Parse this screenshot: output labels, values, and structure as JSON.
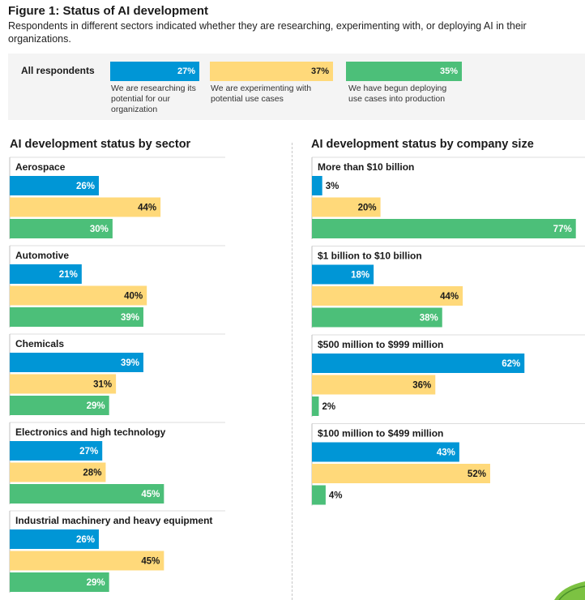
{
  "figure": {
    "title": "Figure 1: Status of AI development",
    "subtitle": "Respondents in different sectors indicated whether they are researching, experimenting with, or deploying AI in their organizations."
  },
  "colors": {
    "research": "#0096d6",
    "experiment": "#ffd97a",
    "deploy": "#4cbf79"
  },
  "all_respondents": {
    "label": "All respondents",
    "items": [
      {
        "value": "27%",
        "desc": "We are researching its potential for our organization"
      },
      {
        "value": "37%",
        "desc": "We are experimenting with potential use cases"
      },
      {
        "value": "35%",
        "desc": "We have begun deploying use cases into production"
      }
    ]
  },
  "chart_data": [
    {
      "type": "bar",
      "title": "AI development status by sector",
      "series_order": [
        "research",
        "experiment",
        "deploy"
      ],
      "groups": [
        {
          "label": "Aerospace",
          "values": [
            26,
            44,
            30
          ]
        },
        {
          "label": "Automotive",
          "values": [
            21,
            40,
            39
          ]
        },
        {
          "label": "Chemicals",
          "values": [
            39,
            31,
            29
          ]
        },
        {
          "label": "Electronics and high technology",
          "values": [
            27,
            28,
            45
          ]
        },
        {
          "label": "Industrial machinery and heavy equipment",
          "values": [
            26,
            45,
            29
          ]
        }
      ]
    },
    {
      "type": "bar",
      "title": "AI development status by company size",
      "series_order": [
        "research",
        "experiment",
        "deploy"
      ],
      "groups": [
        {
          "label": "More than $10 billion",
          "values": [
            3,
            20,
            77
          ]
        },
        {
          "label": "$1 billion to $10 billion",
          "values": [
            18,
            44,
            38
          ]
        },
        {
          "label": "$500 million to $999 million",
          "values": [
            62,
            36,
            2
          ]
        },
        {
          "label": "$100 million to $499 million",
          "values": [
            43,
            52,
            4
          ]
        }
      ]
    }
  ]
}
